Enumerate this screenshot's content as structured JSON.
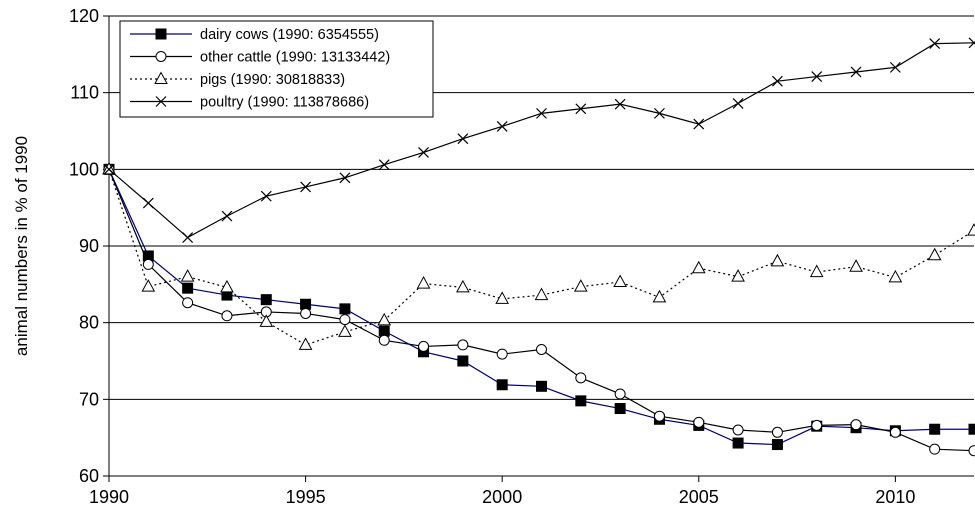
{
  "chart_data": {
    "type": "line",
    "title": "",
    "xlabel": "",
    "ylabel": "animal numbers in % of 1990",
    "xlim": [
      1990,
      2012
    ],
    "ylim": [
      60,
      120
    ],
    "x_ticks": [
      1990,
      1995,
      2000,
      2005,
      2010
    ],
    "y_ticks": [
      60,
      70,
      80,
      90,
      100,
      110,
      120
    ],
    "grid": "horizontal",
    "legend_position": "top-left",
    "x": [
      1990,
      1991,
      1992,
      1993,
      1994,
      1995,
      1996,
      1997,
      1998,
      1999,
      2000,
      2001,
      2002,
      2003,
      2004,
      2005,
      2006,
      2007,
      2008,
      2009,
      2010,
      2011,
      2012
    ],
    "series": [
      {
        "name": "dairy cows (1990: 6354555)",
        "line_color": "#00007a",
        "marker": "filled-square",
        "line_style": "solid",
        "values": [
          100,
          88.7,
          84.5,
          83.6,
          83.0,
          82.4,
          81.8,
          78.9,
          76.2,
          75.0,
          71.9,
          71.7,
          69.8,
          68.8,
          67.4,
          66.6,
          64.3,
          64.1,
          66.5,
          66.3,
          65.9,
          66.1,
          66.1
        ]
      },
      {
        "name": "other cattle (1990: 13133442)",
        "line_color": "#000000",
        "marker": "open-circle",
        "line_style": "solid",
        "values": [
          100,
          87.6,
          82.6,
          80.9,
          81.4,
          81.2,
          80.4,
          77.7,
          76.9,
          77.1,
          75.9,
          76.5,
          72.8,
          70.7,
          67.8,
          67.0,
          66.0,
          65.7,
          66.6,
          66.7,
          65.7,
          63.5,
          63.3
        ]
      },
      {
        "name": "pigs (1990: 30818833)",
        "line_color": "#000000",
        "marker": "open-triangle",
        "line_style": "dotted",
        "values": [
          100,
          84.7,
          86.0,
          84.6,
          80.1,
          77.1,
          78.8,
          80.3,
          85.1,
          84.6,
          83.1,
          83.6,
          84.7,
          85.3,
          83.3,
          87.1,
          86.0,
          88.0,
          86.6,
          87.3,
          85.9,
          88.8,
          92.0
        ]
      },
      {
        "name": "poultry (1990: 113878686)",
        "line_color": "#000000",
        "marker": "cross",
        "line_style": "solid",
        "values": [
          100,
          95.6,
          91.1,
          93.9,
          96.5,
          97.7,
          98.9,
          100.6,
          102.2,
          104.0,
          105.6,
          107.3,
          107.9,
          108.5,
          107.3,
          105.9,
          108.6,
          111.5,
          112.1,
          112.7,
          113.3,
          116.4,
          116.5
        ]
      }
    ]
  }
}
